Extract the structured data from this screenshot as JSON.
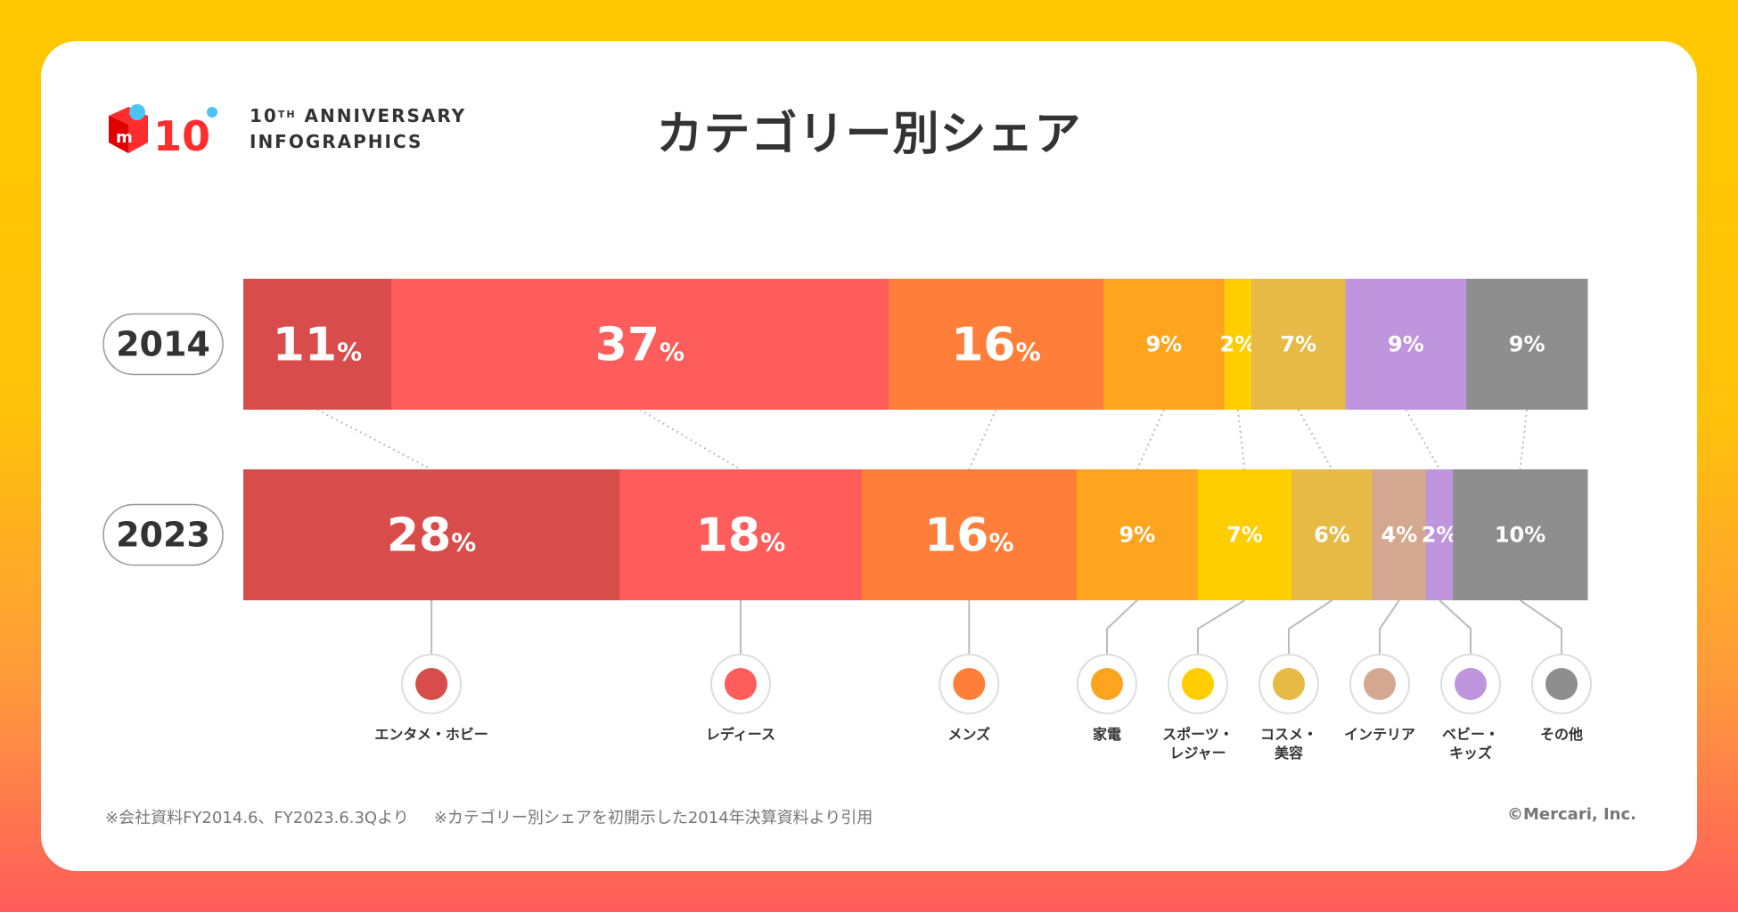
{
  "header": {
    "anniv_line1_num": "10",
    "anniv_line1_sup": "TH",
    "anniv_line1_rest": " ANNIVERSARY",
    "anniv_line2": "INFOGRAPHICS",
    "title": "カテゴリー別シェア",
    "logo_text": "10"
  },
  "chart_data": {
    "type": "bar",
    "orientation": "horizontal-stacked-100",
    "title": "カテゴリー別シェア",
    "categories": [
      "2014",
      "2023"
    ],
    "series": [
      {
        "name": "エンタメ・ホビー",
        "color": "#D84C4C",
        "values": [
          11,
          28
        ],
        "icon": "gamepad-icon"
      },
      {
        "name": "レディース",
        "color": "#FF5C5C",
        "values": [
          37,
          18
        ],
        "icon": "woman-icon"
      },
      {
        "name": "メンズ",
        "color": "#FF7F3A",
        "values": [
          16,
          16
        ],
        "icon": "man-icon"
      },
      {
        "name": "家電",
        "color": "#FFA41F",
        "values": [
          9,
          9
        ],
        "icon": "phone-icon"
      },
      {
        "name": "スポーツ・レジャー",
        "color": "#FFCE00",
        "values": [
          2,
          7
        ],
        "icon": "basketball-icon"
      },
      {
        "name": "コスメ・美容",
        "color": "#E6BA45",
        "values": [
          7,
          6
        ],
        "icon": "lipstick-icon"
      },
      {
        "name": "インテリア",
        "color": "#D4A890",
        "values": [
          0,
          4
        ],
        "icon": "chair-icon"
      },
      {
        "name": "ベビー・キッズ",
        "color": "#BF96DD",
        "values": [
          9,
          2
        ],
        "icon": "stroller-icon"
      },
      {
        "name": "その他",
        "color": "#8E8E8E",
        "values": [
          9,
          10
        ],
        "icon": "car-icon"
      }
    ],
    "value_suffix": "%",
    "legend": "bottom"
  },
  "footer": {
    "note1": "※会社資料FY2014.6、FY2023.6.3Qより",
    "note2": "※カテゴリー別シェアを初開示した2014年決算資料より引用",
    "copyright": "©Mercari, Inc."
  }
}
